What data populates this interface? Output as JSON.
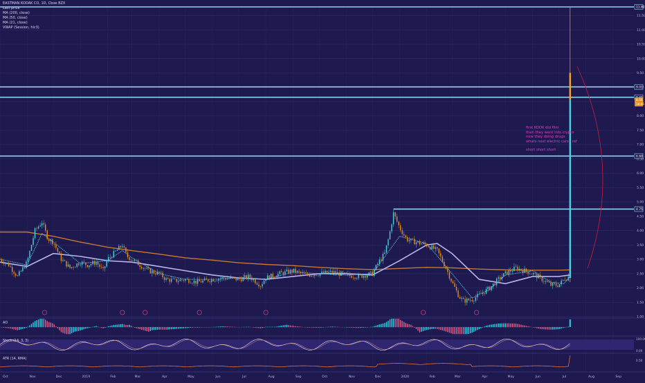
{
  "header": {
    "title": "EASTMAN KODAK CO, 1D, Cboe BZX",
    "sub": "Last price",
    "indicators": [
      "MA (200, close)",
      "MA (50, close)",
      "MA (21, close)",
      "VWAP (Session, hlc3)"
    ]
  },
  "annotation": {
    "lines": [
      "first KODK did film",
      "then they went into crypto",
      "now they doing drugs",
      "whats next electric cars...ref"
    ],
    "footer": "short short short"
  },
  "price_tags": {
    "current": "8.56",
    "countdown": "18:46"
  },
  "panes": {
    "ao": "AO",
    "stoch": "Stoch (14, 3, 3)",
    "atr": "ATR (14, RMA)"
  },
  "colors": {
    "background": "#1e1a4f",
    "resistance": "#8fd3f4",
    "ma200": "#c9782f",
    "ma50": "#b7b6f0",
    "ma21": "#59b8de",
    "candle_up": "#4fd0e0",
    "candle_down": "#e8901c",
    "annotation": "#e040c8"
  },
  "chart_data": {
    "type": "candlestick",
    "y_ticks": [
      1.0,
      1.5,
      2.0,
      2.5,
      3.0,
      3.5,
      4.0,
      4.5,
      5.0,
      5.5,
      6.0,
      6.5,
      7.0,
      7.5,
      8.0,
      8.5,
      9.0,
      9.5,
      10.0,
      10.5,
      11.0,
      11.5
    ],
    "y_tick_labels": [
      "1.00",
      "1.50",
      "2.00",
      "2.50",
      "3.00",
      "3.50",
      "4.00",
      "4.50",
      "5.00",
      "5.50",
      "6.00",
      "6.50",
      "7.00",
      "7.50",
      "8.00",
      "8.50",
      "9.00",
      "9.50",
      "10.00",
      "10.50",
      "11.00",
      "11.50"
    ],
    "ylim": [
      1.0,
      11.8
    ],
    "x_labels": [
      "Oct",
      "Nov",
      "Dec",
      "2019",
      "Feb",
      "Mar",
      "Apr",
      "May",
      "Jun",
      "Jul",
      "Aug",
      "Sep",
      "Oct",
      "Nov",
      "Dec",
      "2020",
      "Feb",
      "Mar",
      "Apr",
      "May",
      "Jun",
      "Jul",
      "Aug",
      "Sep"
    ],
    "x_positions_days": [
      0,
      31,
      61,
      92,
      123,
      151,
      182,
      212,
      243,
      273,
      304,
      335,
      365,
      396,
      426,
      457,
      488,
      517,
      548,
      578,
      609,
      639,
      670,
      701
    ],
    "xlim_days": [
      0,
      725
    ],
    "resistance_levels": [
      {
        "value": 11.8,
        "label": "11.80"
      },
      {
        "value": 9.01,
        "label": "9.01"
      },
      {
        "value": 8.65,
        "label": "8.65"
      },
      {
        "value": 6.6,
        "label": "6.60"
      },
      {
        "value": 4.75,
        "label": "4.75"
      }
    ],
    "close_series": [
      [
        0,
        3.0
      ],
      [
        10,
        2.8
      ],
      [
        20,
        2.4
      ],
      [
        31,
        2.9
      ],
      [
        40,
        4.0
      ],
      [
        48,
        4.3
      ],
      [
        55,
        3.7
      ],
      [
        61,
        3.6
      ],
      [
        70,
        3.0
      ],
      [
        80,
        2.7
      ],
      [
        92,
        2.9
      ],
      [
        100,
        2.8
      ],
      [
        110,
        2.9
      ],
      [
        118,
        2.6
      ],
      [
        123,
        3.0
      ],
      [
        130,
        3.2
      ],
      [
        140,
        3.5
      ],
      [
        145,
        3.1
      ],
      [
        151,
        3.0
      ],
      [
        160,
        2.8
      ],
      [
        170,
        2.6
      ],
      [
        182,
        2.5
      ],
      [
        190,
        2.3
      ],
      [
        200,
        2.25
      ],
      [
        212,
        2.3
      ],
      [
        225,
        2.2
      ],
      [
        243,
        2.3
      ],
      [
        255,
        2.35
      ],
      [
        273,
        2.3
      ],
      [
        285,
        2.4
      ],
      [
        298,
        2.1
      ],
      [
        304,
        2.35
      ],
      [
        320,
        2.5
      ],
      [
        335,
        2.6
      ],
      [
        350,
        2.45
      ],
      [
        365,
        2.5
      ],
      [
        380,
        2.55
      ],
      [
        396,
        2.45
      ],
      [
        410,
        2.4
      ],
      [
        426,
        2.5
      ],
      [
        433,
        2.9
      ],
      [
        440,
        3.2
      ],
      [
        445,
        3.8
      ],
      [
        450,
        4.6
      ],
      [
        457,
        4.1
      ],
      [
        465,
        3.7
      ],
      [
        475,
        3.6
      ],
      [
        488,
        3.5
      ],
      [
        500,
        3.3
      ],
      [
        510,
        2.7
      ],
      [
        517,
        2.2
      ],
      [
        525,
        1.7
      ],
      [
        530,
        1.55
      ],
      [
        540,
        1.6
      ],
      [
        548,
        1.75
      ],
      [
        560,
        2.0
      ],
      [
        570,
        2.3
      ],
      [
        578,
        2.5
      ],
      [
        590,
        2.7
      ],
      [
        600,
        2.6
      ],
      [
        609,
        2.5
      ],
      [
        620,
        2.3
      ],
      [
        630,
        2.1
      ],
      [
        639,
        2.1
      ],
      [
        645,
        2.3
      ],
      [
        651,
        2.4
      ],
      [
        652,
        8.56
      ]
    ],
    "spike_candle": {
      "day": 652,
      "open": 2.35,
      "high": 11.8,
      "low": 2.2,
      "close": 8.56
    },
    "ma200": [
      [
        0,
        3.95
      ],
      [
        31,
        3.95
      ],
      [
        61,
        3.8
      ],
      [
        92,
        3.6
      ],
      [
        123,
        3.42
      ],
      [
        151,
        3.3
      ],
      [
        182,
        3.18
      ],
      [
        212,
        3.05
      ],
      [
        243,
        2.97
      ],
      [
        273,
        2.88
      ],
      [
        304,
        2.82
      ],
      [
        335,
        2.78
      ],
      [
        365,
        2.72
      ],
      [
        396,
        2.67
      ],
      [
        426,
        2.64
      ],
      [
        457,
        2.68
      ],
      [
        488,
        2.72
      ],
      [
        517,
        2.7
      ],
      [
        548,
        2.66
      ],
      [
        578,
        2.63
      ],
      [
        609,
        2.62
      ],
      [
        639,
        2.62
      ],
      [
        652,
        2.63
      ]
    ],
    "ma50": [
      [
        0,
        2.9
      ],
      [
        31,
        2.75
      ],
      [
        61,
        3.2
      ],
      [
        92,
        3.1
      ],
      [
        123,
        2.95
      ],
      [
        151,
        2.9
      ],
      [
        182,
        2.75
      ],
      [
        212,
        2.6
      ],
      [
        243,
        2.45
      ],
      [
        273,
        2.35
      ],
      [
        304,
        2.3
      ],
      [
        335,
        2.4
      ],
      [
        365,
        2.5
      ],
      [
        396,
        2.5
      ],
      [
        426,
        2.45
      ],
      [
        457,
        2.95
      ],
      [
        488,
        3.5
      ],
      [
        500,
        3.55
      ],
      [
        517,
        3.2
      ],
      [
        548,
        2.3
      ],
      [
        578,
        2.15
      ],
      [
        609,
        2.4
      ],
      [
        639,
        2.4
      ],
      [
        652,
        2.45
      ]
    ],
    "ma21": [
      [
        0,
        3.0
      ],
      [
        31,
        2.8
      ],
      [
        48,
        3.9
      ],
      [
        61,
        3.6
      ],
      [
        92,
        2.85
      ],
      [
        123,
        2.95
      ],
      [
        140,
        3.3
      ],
      [
        151,
        3.05
      ],
      [
        182,
        2.5
      ],
      [
        212,
        2.3
      ],
      [
        243,
        2.3
      ],
      [
        273,
        2.35
      ],
      [
        304,
        2.3
      ],
      [
        335,
        2.55
      ],
      [
        365,
        2.5
      ],
      [
        396,
        2.45
      ],
      [
        426,
        2.5
      ],
      [
        457,
        3.8
      ],
      [
        488,
        3.55
      ],
      [
        517,
        2.5
      ],
      [
        540,
        1.65
      ],
      [
        560,
        1.95
      ],
      [
        578,
        2.45
      ],
      [
        609,
        2.6
      ],
      [
        630,
        2.2
      ],
      [
        645,
        2.15
      ],
      [
        652,
        2.4
      ]
    ],
    "ao_range": [
      -0.8,
      1.6
    ],
    "stoch_range": [
      0,
      100
    ],
    "stoch_levels": [
      20,
      80
    ],
    "stoch_tick_labels": [
      "100.00",
      "0.00"
    ],
    "atr_tick_label": "0.50",
    "atr_range": [
      0,
      0.8
    ]
  }
}
